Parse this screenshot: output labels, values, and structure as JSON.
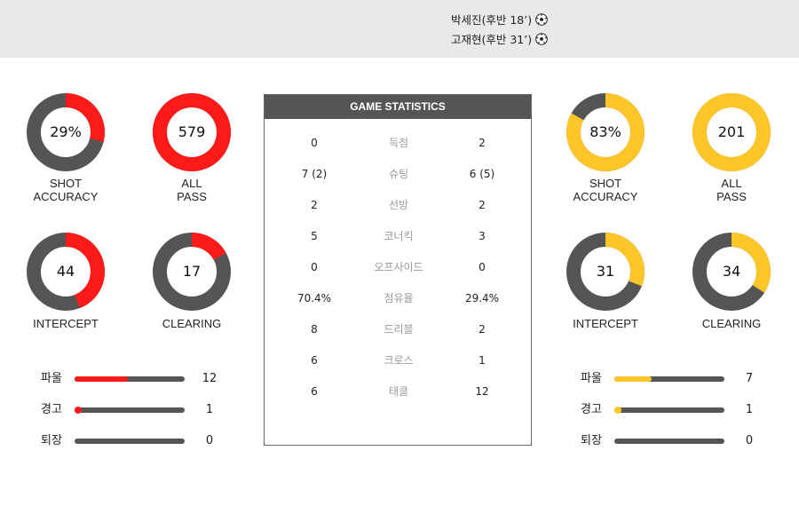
{
  "scorers": [
    {
      "text": "박세진(후반 18’)",
      "icon": "soccer-ball-icon"
    },
    {
      "text": "고재현(후반 31’)",
      "icon": "soccer-ball-icon"
    }
  ],
  "colors": {
    "home": "#ff1a1a",
    "away": "#ffc629",
    "track": "#555555"
  },
  "home": {
    "shot_accuracy": {
      "value": "29%",
      "fraction": 0.29,
      "label1": "SHOT",
      "label2": "ACCURACY"
    },
    "all_pass": {
      "value": "579",
      "fraction": 1.0,
      "label1": "ALL",
      "label2": "PASS"
    },
    "intercept": {
      "value": "44",
      "fraction": 0.44,
      "label": "INTERCEPT"
    },
    "clearing": {
      "value": "17",
      "fraction": 0.17,
      "label": "CLEARING"
    },
    "bars": [
      {
        "name": "파울",
        "value": "12",
        "fraction": 0.48
      },
      {
        "name": "경고",
        "value": "1",
        "fraction": 0.03
      },
      {
        "name": "퇴장",
        "value": "0",
        "fraction": 0
      }
    ]
  },
  "away": {
    "shot_accuracy": {
      "value": "83%",
      "fraction": 0.83,
      "label1": "SHOT",
      "label2": "ACCURACY"
    },
    "all_pass": {
      "value": "201",
      "fraction": 1.0,
      "label1": "ALL",
      "label2": "PASS"
    },
    "intercept": {
      "value": "31",
      "fraction": 0.31,
      "label": "INTERCEPT"
    },
    "clearing": {
      "value": "34",
      "fraction": 0.34,
      "label": "CLEARING"
    },
    "bars": [
      {
        "name": "파울",
        "value": "7",
        "fraction": 0.34
      },
      {
        "name": "경고",
        "value": "1",
        "fraction": 0.03
      },
      {
        "name": "퇴장",
        "value": "0",
        "fraction": 0
      }
    ]
  },
  "stats": {
    "title": "GAME STATISTICS",
    "rows": [
      {
        "home": "0",
        "label": "득점",
        "away": "2"
      },
      {
        "home": "7 (2)",
        "label": "슈팅",
        "away": "6 (5)"
      },
      {
        "home": "2",
        "label": "선방",
        "away": "2"
      },
      {
        "home": "5",
        "label": "코너킥",
        "away": "3"
      },
      {
        "home": "0",
        "label": "오프사이드",
        "away": "0"
      },
      {
        "home": "70.4%",
        "label": "점유율",
        "away": "29.4%"
      },
      {
        "home": "8",
        "label": "드리블",
        "away": "2"
      },
      {
        "home": "6",
        "label": "크로스",
        "away": "1"
      },
      {
        "home": "6",
        "label": "태클",
        "away": "12"
      }
    ]
  }
}
